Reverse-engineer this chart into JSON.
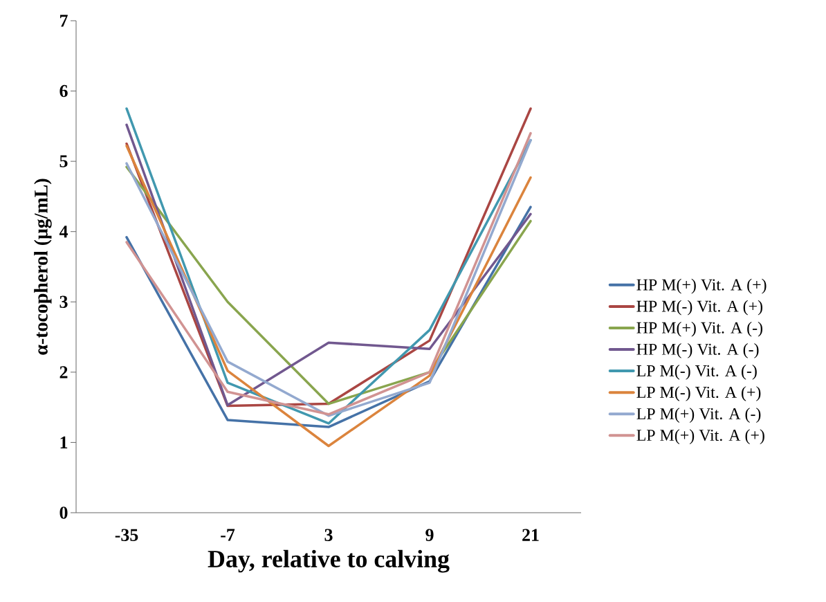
{
  "chart_data": {
    "type": "line",
    "xlabel": "Day, relative to calving",
    "ylabel": "α-tocopherol (μg/mL)",
    "categories": [
      "-35",
      "-7",
      "3",
      "9",
      "21"
    ],
    "ylim": [
      0,
      7
    ],
    "yticks": [
      0,
      1,
      2,
      3,
      4,
      5,
      6,
      7
    ],
    "grid": false,
    "legend": "right",
    "marker": "none",
    "line_style": "solid",
    "series": [
      {
        "name": "HP M(+) Vit. A (+)",
        "color": "#4572a7",
        "values": [
          3.92,
          1.32,
          1.22,
          1.87,
          4.35
        ]
      },
      {
        "name": "HP M(-) Vit. A (+)",
        "color": "#aa4643",
        "values": [
          5.25,
          1.52,
          1.55,
          2.45,
          5.75
        ]
      },
      {
        "name": "HP M(+) Vit. A (-)",
        "color": "#89a54e",
        "values": [
          4.92,
          3.0,
          1.55,
          2.0,
          4.15
        ]
      },
      {
        "name": "HP M(-) Vit. A (-)",
        "color": "#71588f",
        "values": [
          5.52,
          1.53,
          2.42,
          2.33,
          4.25
        ]
      },
      {
        "name": "LP M(-) Vit. A (-)",
        "color": "#4198af",
        "values": [
          5.75,
          1.85,
          1.27,
          2.6,
          5.3
        ]
      },
      {
        "name": "LP M(-) Vit. A (+)",
        "color": "#db843d",
        "values": [
          5.22,
          2.02,
          0.95,
          1.95,
          4.77
        ]
      },
      {
        "name": "LP M(+) Vit. A (-)",
        "color": "#93a9cf",
        "values": [
          4.97,
          2.15,
          1.38,
          1.85,
          5.3
        ]
      },
      {
        "name": "LP M(+) Vit. A (+)",
        "color": "#d19392",
        "values": [
          3.85,
          1.72,
          1.4,
          2.0,
          5.4
        ]
      }
    ]
  }
}
